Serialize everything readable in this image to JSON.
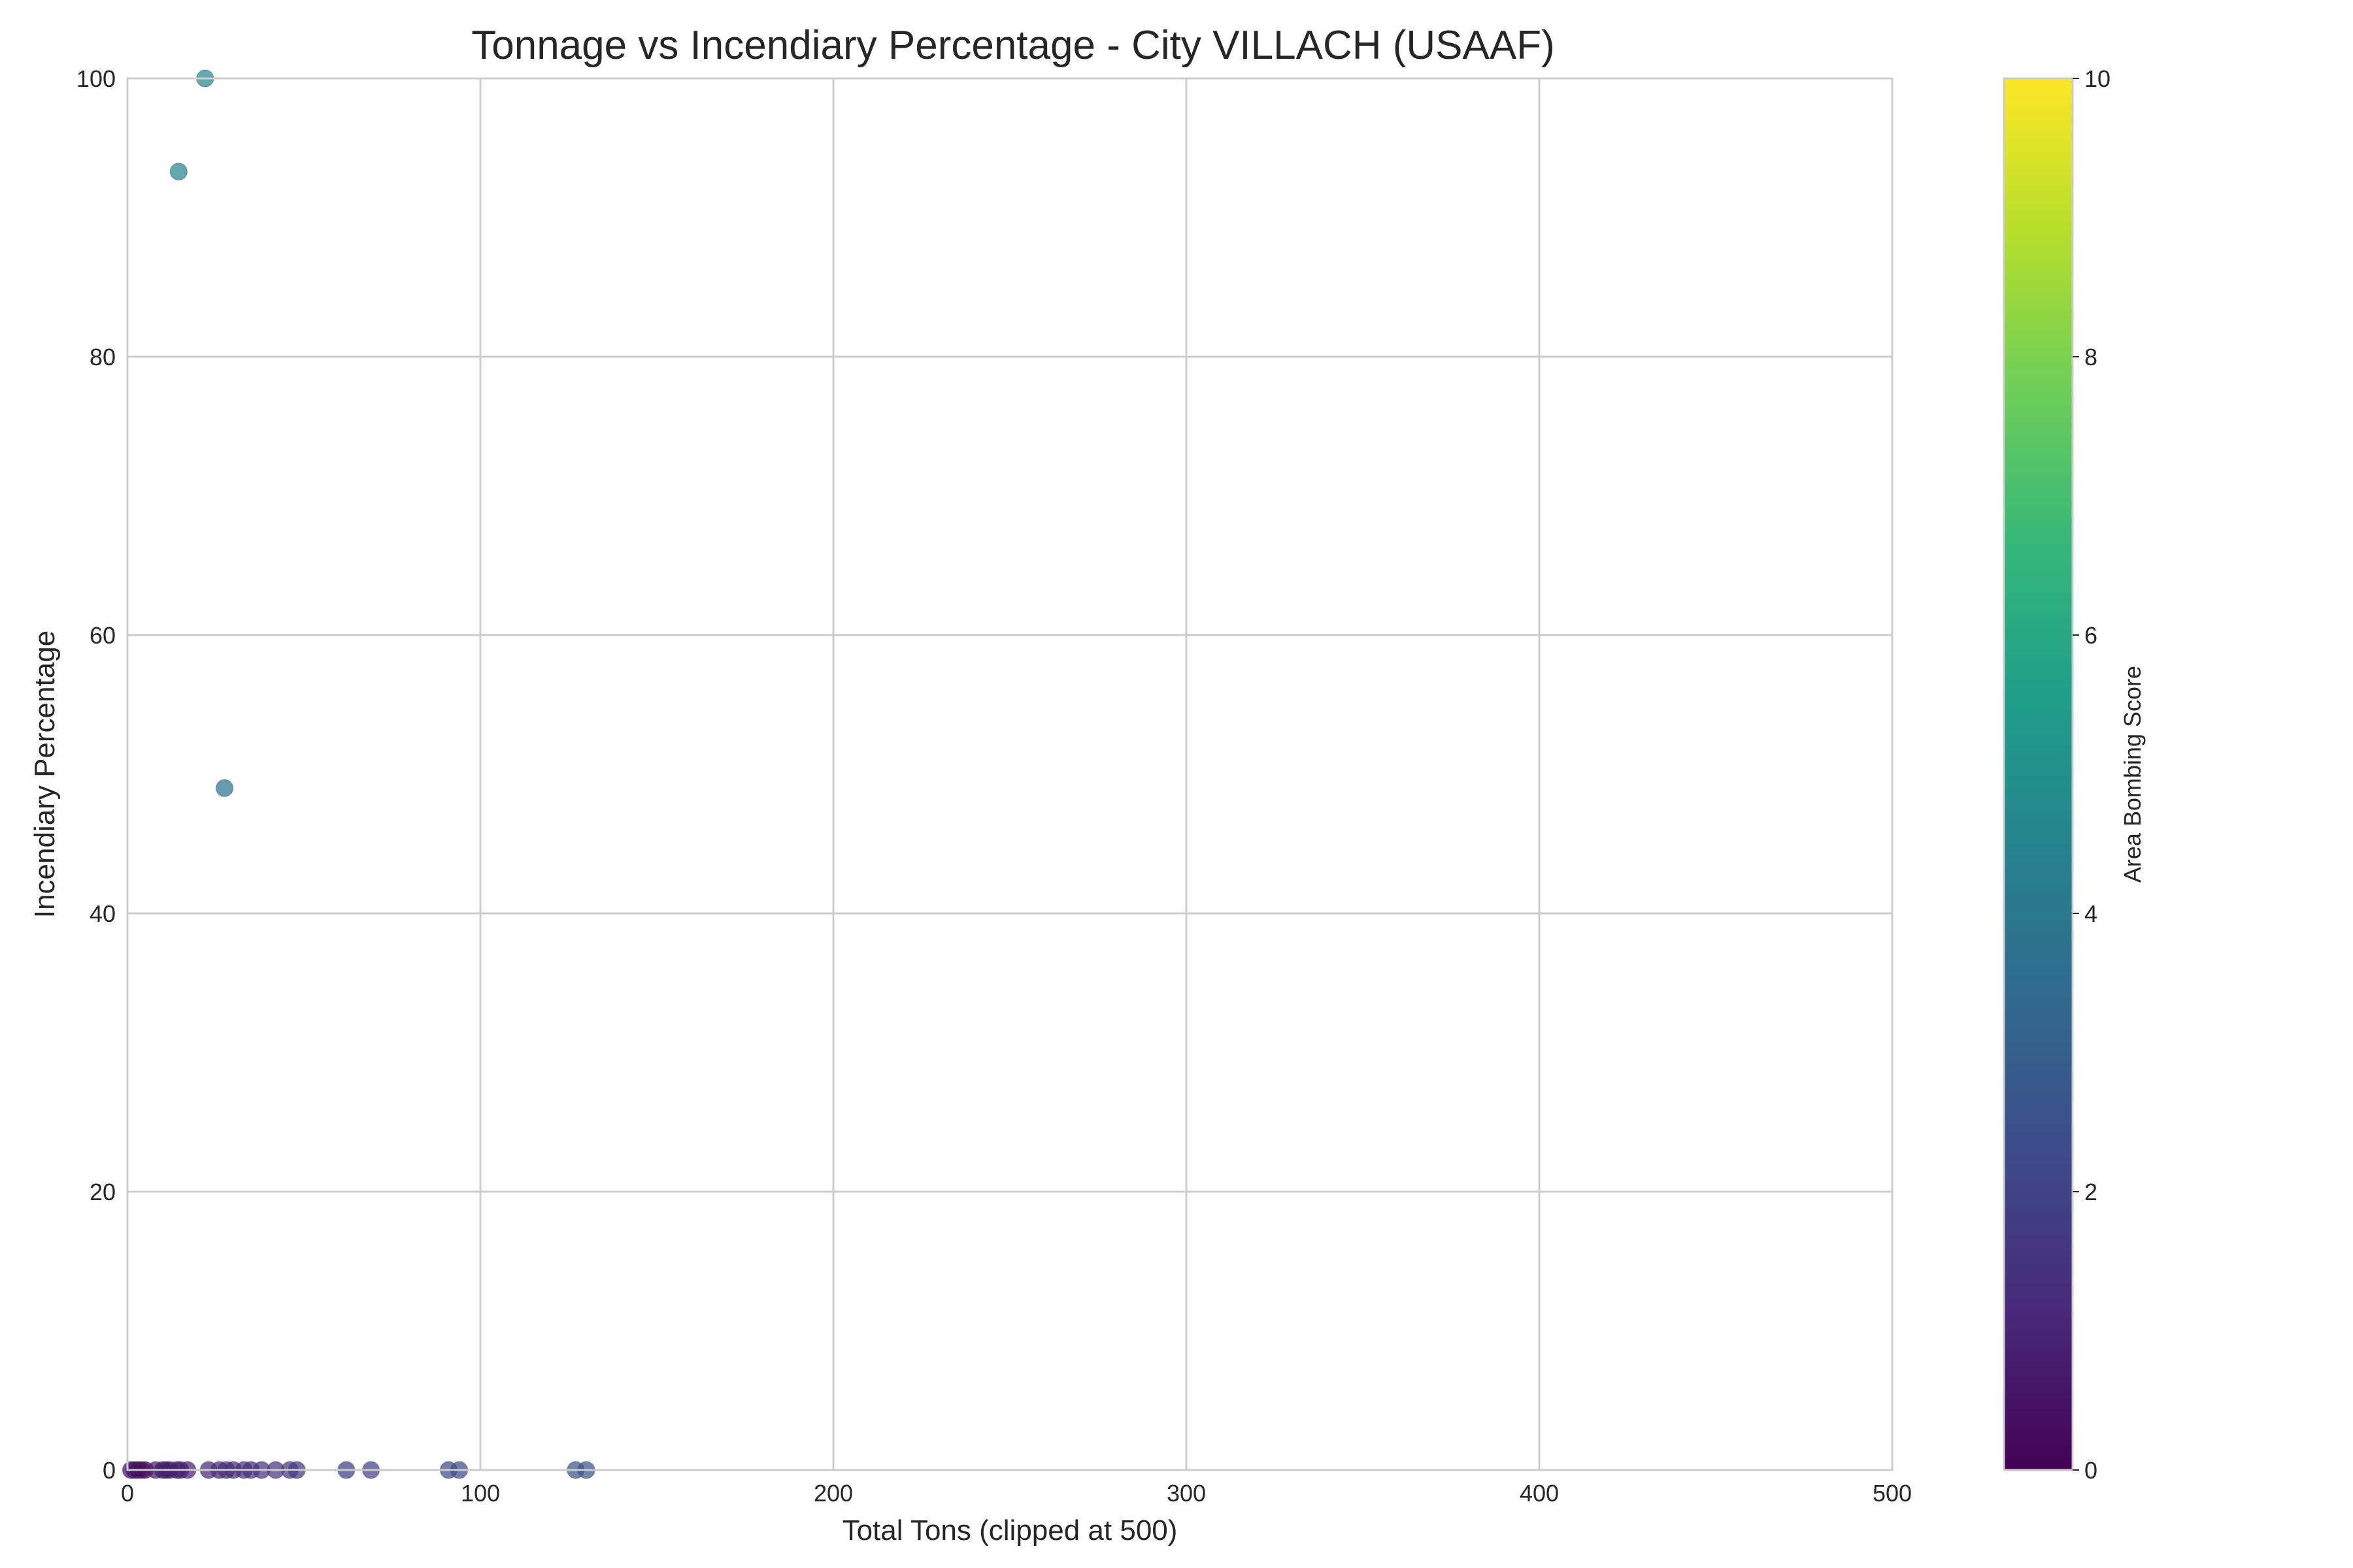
{
  "chart_data": {
    "type": "scatter",
    "title": "Tonnage vs Incendiary Percentage - City VILLACH (USAAF)",
    "xlabel": "Total Tons (clipped at 500)",
    "ylabel": "Incendiary Percentage",
    "xlim": [
      0,
      500
    ],
    "ylim": [
      0,
      100
    ],
    "xticks": [
      "0",
      "100",
      "200",
      "300",
      "400",
      "500"
    ],
    "yticks": [
      "0",
      "20",
      "40",
      "60",
      "80",
      "100"
    ],
    "grid": true,
    "colorbar": {
      "label": "Area Bombing Score",
      "range": [
        0,
        10
      ],
      "ticks": [
        "0",
        "2",
        "4",
        "6",
        "8",
        "10"
      ],
      "colormap": "viridis",
      "colors": [
        "#440154",
        "#482878",
        "#3e4989",
        "#31688e",
        "#26828e",
        "#1f9e89",
        "#35b779",
        "#6ece58",
        "#b5de2b",
        "#fde725"
      ]
    },
    "points": [
      {
        "x": 22,
        "y": 100,
        "c": 4.8
      },
      {
        "x": 14.5,
        "y": 93.3,
        "c": 4.7
      },
      {
        "x": 27.5,
        "y": 49,
        "c": 3.9
      },
      {
        "x": 1,
        "y": 0,
        "c": 0.3
      },
      {
        "x": 2,
        "y": 0,
        "c": 0.3
      },
      {
        "x": 3,
        "y": 0,
        "c": 0.4
      },
      {
        "x": 4,
        "y": 0,
        "c": 0.3
      },
      {
        "x": 5,
        "y": 0,
        "c": 0.4
      },
      {
        "x": 8,
        "y": 0,
        "c": 0.6
      },
      {
        "x": 10,
        "y": 0,
        "c": 0.6
      },
      {
        "x": 11,
        "y": 0,
        "c": 0.7
      },
      {
        "x": 12,
        "y": 0,
        "c": 0.7
      },
      {
        "x": 14,
        "y": 0,
        "c": 0.8
      },
      {
        "x": 15,
        "y": 0,
        "c": 0.8
      },
      {
        "x": 17,
        "y": 0,
        "c": 0.9
      },
      {
        "x": 23,
        "y": 0,
        "c": 1.1
      },
      {
        "x": 26,
        "y": 0,
        "c": 1.1
      },
      {
        "x": 28,
        "y": 0,
        "c": 1.2
      },
      {
        "x": 30,
        "y": 0,
        "c": 1.2
      },
      {
        "x": 33,
        "y": 0,
        "c": 1.3
      },
      {
        "x": 35,
        "y": 0,
        "c": 1.3
      },
      {
        "x": 38,
        "y": 0,
        "c": 1.4
      },
      {
        "x": 42,
        "y": 0,
        "c": 1.5
      },
      {
        "x": 46,
        "y": 0,
        "c": 1.6
      },
      {
        "x": 48,
        "y": 0,
        "c": 1.6
      },
      {
        "x": 62,
        "y": 0,
        "c": 1.9
      },
      {
        "x": 69,
        "y": 0,
        "c": 2.0
      },
      {
        "x": 91,
        "y": 0,
        "c": 2.3
      },
      {
        "x": 94,
        "y": 0,
        "c": 2.3
      },
      {
        "x": 127,
        "y": 0,
        "c": 2.6
      },
      {
        "x": 130,
        "y": 0,
        "c": 2.6
      }
    ]
  }
}
